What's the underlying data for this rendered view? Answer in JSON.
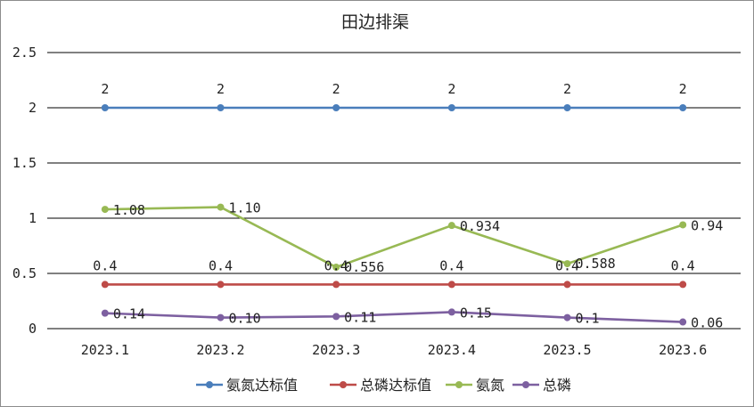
{
  "chart_data": {
    "type": "line",
    "title": "田边排渠",
    "categories": [
      "2023.1",
      "2023.2",
      "2023.3",
      "2023.4",
      "2023.5",
      "2023.6"
    ],
    "ylim": [
      0,
      2.5
    ],
    "yticks": [
      "0",
      "0.5",
      "1",
      "1.5",
      "2",
      "2.5"
    ],
    "grid": true,
    "legend": "bottom",
    "series": [
      {
        "name": "氨氮达标值",
        "color": "#4a7ebb",
        "values": [
          2,
          2,
          2,
          2,
          2,
          2
        ],
        "labels": [
          "2",
          "2",
          "2",
          "2",
          "2",
          "2"
        ]
      },
      {
        "name": "总磷达标值",
        "color": "#be4b48",
        "values": [
          0.4,
          0.4,
          0.4,
          0.4,
          0.4,
          0.4
        ],
        "labels": [
          "0.4",
          "0.4",
          "0.4",
          "0.4",
          "0.4",
          "0.4"
        ]
      },
      {
        "name": "氨氮",
        "color": "#98b954",
        "values": [
          1.08,
          1.1,
          0.556,
          0.934,
          0.588,
          0.94
        ],
        "labels": [
          "1.08",
          "1.10",
          "0.556",
          "0.934",
          "0.588",
          "0.94"
        ]
      },
      {
        "name": "总磷",
        "color": "#7d60a0",
        "values": [
          0.14,
          0.1,
          0.11,
          0.15,
          0.1,
          0.06
        ],
        "labels": [
          "0.14",
          "0.10",
          "0.11",
          "0.15",
          "0.1",
          "0.06"
        ]
      }
    ]
  }
}
